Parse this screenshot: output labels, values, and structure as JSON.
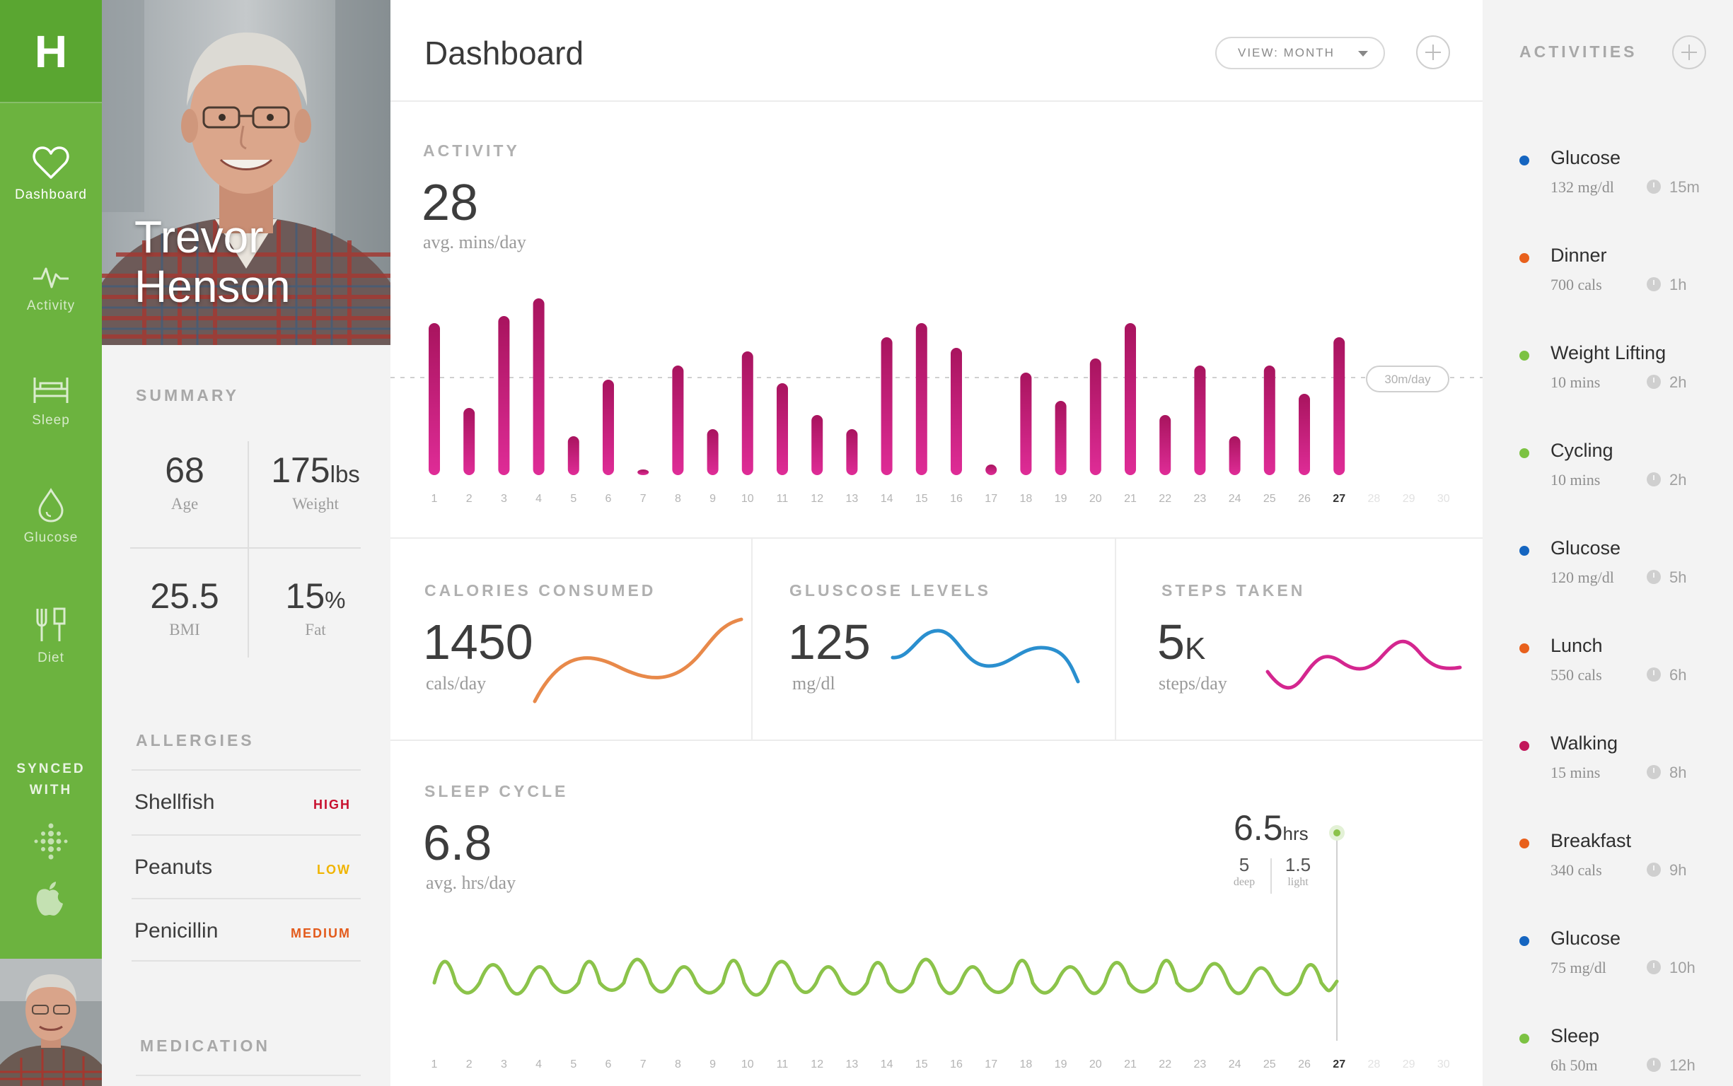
{
  "app": {
    "logo": "H",
    "title": "Dashboard"
  },
  "nav": {
    "items": [
      {
        "label": "Dashboard",
        "icon": "heart-icon"
      },
      {
        "label": "Activity",
        "icon": "pulse-icon"
      },
      {
        "label": "Sleep",
        "icon": "bed-icon"
      },
      {
        "label": "Glucose",
        "icon": "drop-icon"
      },
      {
        "label": "Diet",
        "icon": "utensils-icon"
      }
    ],
    "synced_line1": "SYNCED",
    "synced_line2": "WITH"
  },
  "profile": {
    "first_name": "Trevor",
    "last_name": "Henson",
    "summary_title": "SUMMARY",
    "age": {
      "value": "68",
      "label": "Age"
    },
    "weight": {
      "value": "175",
      "unit": "lbs",
      "label": "Weight"
    },
    "bmi": {
      "value": "25.5",
      "label": "BMI"
    },
    "fat": {
      "value": "15",
      "unit": "%",
      "label": "Fat"
    },
    "allergies_title": "ALLERGIES",
    "allergies": [
      {
        "name": "Shellfish",
        "severity": "HIGH",
        "color": "#c8102e"
      },
      {
        "name": "Peanuts",
        "severity": "LOW",
        "color": "#f0b400"
      },
      {
        "name": "Penicillin",
        "severity": "MEDIUM",
        "color": "#e35b1c"
      }
    ],
    "medication_title": "MEDICATION"
  },
  "header": {
    "view_label": "VIEW: MONTH"
  },
  "activity": {
    "title": "ACTIVITY",
    "value": "28",
    "unit": "avg. mins/day",
    "goal_label": "30m/day"
  },
  "calories": {
    "title": "CALORIES CONSUMED",
    "value": "1450",
    "unit": "cals/day"
  },
  "glucose": {
    "title": "GLUSCOSE LEVELS",
    "value": "125",
    "unit": "mg/dl"
  },
  "steps": {
    "title": "STEPS TAKEN",
    "value": "5",
    "suffix": "K",
    "unit": "steps/day"
  },
  "sleep": {
    "title": "SLEEP CYCLE",
    "value": "6.8",
    "unit": "avg. hrs/day",
    "last_value": "6.5",
    "last_unit": "hrs",
    "deep_value": "5",
    "deep_label": "deep",
    "light_value": "1.5",
    "light_label": "light"
  },
  "activities": {
    "title": "ACTIVITIES",
    "items": [
      {
        "title": "Glucose",
        "detail": "132 mg/dl",
        "ago": "15m",
        "color": "#1565c0"
      },
      {
        "title": "Dinner",
        "detail": "700 cals",
        "ago": "1h",
        "color": "#e8601c"
      },
      {
        "title": "Weight Lifting",
        "detail": "10 mins",
        "ago": "2h",
        "color": "#7cc242"
      },
      {
        "title": "Cycling",
        "detail": "10 mins",
        "ago": "2h",
        "color": "#7cc242"
      },
      {
        "title": "Glucose",
        "detail": "120 mg/dl",
        "ago": "5h",
        "color": "#1565c0"
      },
      {
        "title": "Lunch",
        "detail": "550 cals",
        "ago": "6h",
        "color": "#e8601c"
      },
      {
        "title": "Walking",
        "detail": "15 mins",
        "ago": "8h",
        "color": "#c2185b"
      },
      {
        "title": "Breakfast",
        "detail": "340 cals",
        "ago": "9h",
        "color": "#e8601c"
      },
      {
        "title": "Glucose",
        "detail": "75 mg/dl",
        "ago": "10h",
        "color": "#1565c0"
      },
      {
        "title": "Sleep",
        "detail": "6h 50m",
        "ago": "12h",
        "color": "#7cc242"
      }
    ]
  },
  "colors": {
    "brand_green": "#6cb33f",
    "activity_bar": "#c2185b",
    "calories_line": "#e8894a",
    "glucose_line": "#2a8fcf",
    "steps_line": "#d4268f",
    "sleep_line": "#8bc34a"
  },
  "chart_data": [
    {
      "type": "bar",
      "title": "ACTIVITY",
      "categories": [
        "1",
        "2",
        "3",
        "4",
        "5",
        "6",
        "7",
        "8",
        "9",
        "10",
        "11",
        "12",
        "13",
        "14",
        "15",
        "16",
        "17",
        "18",
        "19",
        "20",
        "21",
        "22",
        "23",
        "24",
        "25",
        "26",
        "27",
        "28",
        "29",
        "30"
      ],
      "values": [
        43,
        19,
        45,
        50,
        11,
        27,
        1,
        31,
        13,
        35,
        26,
        17,
        13,
        39,
        43,
        36,
        3,
        29,
        21,
        33,
        43,
        17,
        31,
        11,
        31,
        23,
        39,
        null,
        null,
        null
      ],
      "ylabel": "mins/day",
      "ylim": [
        0,
        50
      ],
      "goal": 30,
      "highlight": "27"
    },
    {
      "type": "line",
      "title": "SLEEP CYCLE",
      "categories": [
        "1",
        "2",
        "3",
        "4",
        "5",
        "6",
        "7",
        "8",
        "9",
        "10",
        "11",
        "12",
        "13",
        "14",
        "15",
        "16",
        "17",
        "18",
        "19",
        "20",
        "21",
        "22",
        "23",
        "24",
        "25",
        "26",
        "27",
        "28",
        "29",
        "30"
      ],
      "highlight": "27"
    }
  ]
}
